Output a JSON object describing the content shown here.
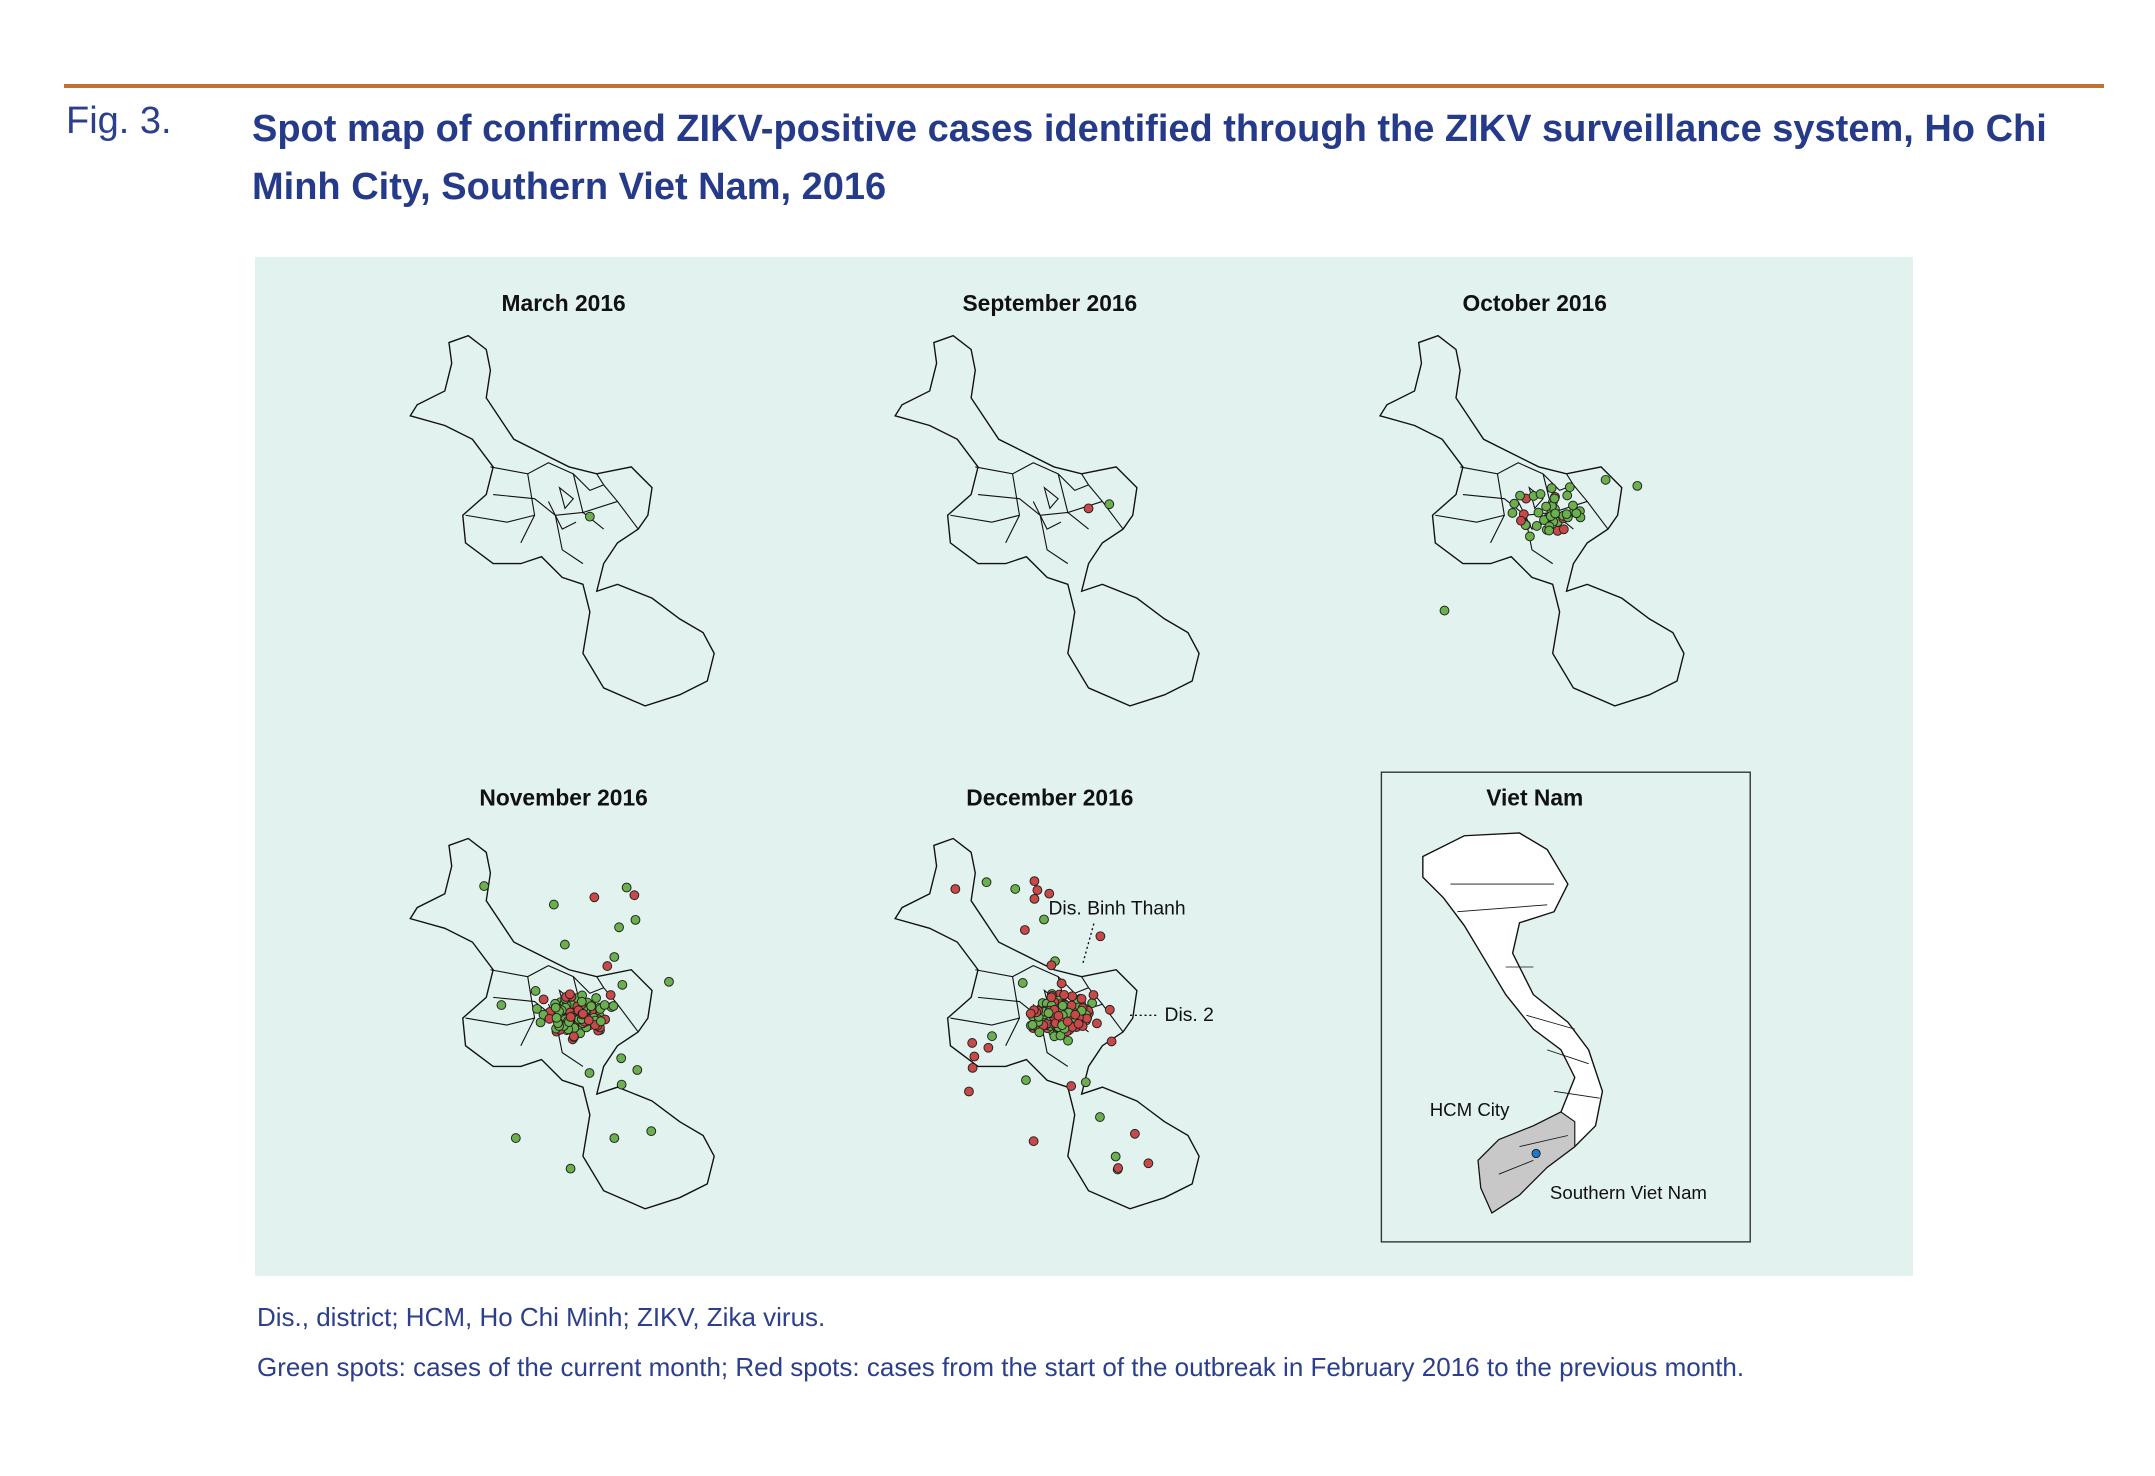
{
  "figure": {
    "label": "Fig. 3.",
    "title": "Spot map of confirmed ZIKV-positive cases identified through the ZIKV surveillance system, Ho Chi Minh City, Southern Viet Nam, 2016",
    "panels": [
      {
        "title": "March 2016"
      },
      {
        "title": "September 2016"
      },
      {
        "title": "October 2016"
      },
      {
        "title": "November 2016"
      },
      {
        "title": "December 2016"
      }
    ],
    "annotations": [
      "Dis. Binh Thanh",
      "Dis. 2"
    ],
    "inset": {
      "title": "Viet Nam",
      "labels": [
        "HCM City",
        "Southern Viet Nam"
      ]
    }
  },
  "notes": [
    "Dis., district; HCM, Ho Chi Minh; ZIKV, Zika virus.",
    "Green spots: cases of the current month; Red spots: cases from the start of the outbreak in February 2016 to the previous month."
  ]
}
